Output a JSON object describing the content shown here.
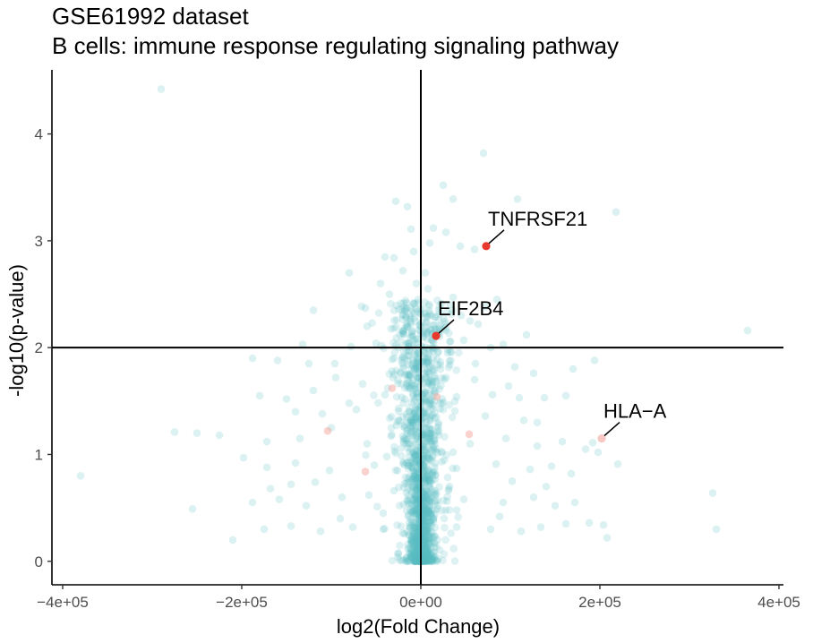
{
  "chart_data": {
    "type": "scatter",
    "title": "GSE61992 dataset",
    "subtitle": "B cells: immune response regulating signaling pathway",
    "xlabel": "log2(Fold Change)",
    "ylabel": "-log10(p-value)",
    "xlim": [
      -412000,
      405000
    ],
    "ylim": [
      -0.22,
      4.6
    ],
    "x_ticks": [
      -400000,
      -200000,
      0,
      200000,
      400000
    ],
    "x_tick_labels": [
      "−4e+05",
      "−2e+05",
      "0e+00",
      "2e+05",
      "4e+05"
    ],
    "y_ticks": [
      0,
      1,
      2,
      3,
      4
    ],
    "y_tick_labels": [
      "0",
      "1",
      "2",
      "3",
      "4"
    ],
    "vline_x": 0,
    "hline_y": 2,
    "grid": false,
    "colors": {
      "background_points": "#5bc0c4",
      "highlight_points": "#e8392f",
      "faint_highlight_points": "#f4a39c",
      "axis": "#000000",
      "tick_text": "#4d4d4d"
    },
    "background_points": [
      [
        -290000,
        4.42
      ],
      [
        70000,
        3.82
      ],
      [
        25000,
        3.52
      ],
      [
        36000,
        3.39
      ],
      [
        108000,
        3.39
      ],
      [
        218000,
        3.27
      ],
      [
        -28000,
        3.37
      ],
      [
        -15000,
        3.32
      ],
      [
        14000,
        3.12
      ],
      [
        28000,
        3.08
      ],
      [
        -11000,
        3.11
      ],
      [
        -30000,
        2.84
      ],
      [
        10000,
        2.98
      ],
      [
        44000,
        2.95
      ],
      [
        60000,
        2.92
      ],
      [
        -20000,
        2.72
      ],
      [
        -40000,
        2.85
      ],
      [
        -80000,
        2.7
      ],
      [
        -5000,
        2.6
      ],
      [
        8000,
        2.55
      ],
      [
        36000,
        2.47
      ],
      [
        72000,
        2.38
      ],
      [
        85000,
        2.45
      ],
      [
        -120000,
        2.35
      ],
      [
        -62000,
        2.37
      ],
      [
        -35000,
        2.5
      ],
      [
        -16000,
        2.42
      ],
      [
        20000,
        2.35
      ],
      [
        45000,
        2.3
      ],
      [
        64000,
        2.22
      ],
      [
        118000,
        2.12
      ],
      [
        -132000,
        2.03
      ],
      [
        -78000,
        2.01
      ],
      [
        -50000,
        2.04
      ],
      [
        -25000,
        2.0
      ],
      [
        14000,
        2.05
      ],
      [
        48000,
        2.07
      ],
      [
        78000,
        2.0
      ],
      [
        92000,
        2.03
      ],
      [
        365000,
        2.16
      ],
      [
        -188000,
        1.9
      ],
      [
        -160000,
        1.88
      ],
      [
        -96000,
        1.85
      ],
      [
        -30000,
        1.9
      ],
      [
        30000,
        1.95
      ],
      [
        61000,
        1.85
      ],
      [
        105000,
        1.82
      ],
      [
        170000,
        1.8
      ],
      [
        194000,
        1.88
      ],
      [
        -180000,
        1.55
      ],
      [
        -150000,
        1.52
      ],
      [
        -120000,
        1.6
      ],
      [
        -80000,
        1.48
      ],
      [
        -40000,
        1.56
      ],
      [
        40000,
        1.54
      ],
      [
        80000,
        1.56
      ],
      [
        110000,
        1.53
      ],
      [
        138000,
        1.53
      ],
      [
        162000,
        1.55
      ],
      [
        -275000,
        1.21
      ],
      [
        -250000,
        1.2
      ],
      [
        -225000,
        1.18
      ],
      [
        -172000,
        1.12
      ],
      [
        -135000,
        1.15
      ],
      [
        -100000,
        1.25
      ],
      [
        -60000,
        1.1
      ],
      [
        -20000,
        1.17
      ],
      [
        20000,
        1.22
      ],
      [
        55000,
        1.1
      ],
      [
        95000,
        1.15
      ],
      [
        130000,
        1.08
      ],
      [
        158000,
        1.12
      ],
      [
        184000,
        1.05
      ],
      [
        192000,
        1.11
      ],
      [
        198000,
        1.02
      ],
      [
        -198000,
        0.97
      ],
      [
        -172000,
        0.88
      ],
      [
        -140000,
        0.92
      ],
      [
        -102000,
        0.85
      ],
      [
        -52000,
        0.9
      ],
      [
        40000,
        0.87
      ],
      [
        84000,
        0.91
      ],
      [
        122000,
        0.86
      ],
      [
        146000,
        0.89
      ],
      [
        168000,
        0.82
      ],
      [
        220000,
        0.91
      ],
      [
        -380000,
        0.8
      ],
      [
        -188000,
        0.55
      ],
      [
        -158000,
        0.58
      ],
      [
        -128000,
        0.52
      ],
      [
        -88000,
        0.6
      ],
      [
        -58000,
        0.62
      ],
      [
        48000,
        0.58
      ],
      [
        92000,
        0.55
      ],
      [
        126000,
        0.6
      ],
      [
        150000,
        0.52
      ],
      [
        172000,
        0.55
      ],
      [
        326000,
        0.64
      ],
      [
        -255000,
        0.49
      ],
      [
        -175000,
        0.3
      ],
      [
        -145000,
        0.33
      ],
      [
        -112000,
        0.28
      ],
      [
        -76000,
        0.32
      ],
      [
        -42000,
        0.3
      ],
      [
        40000,
        0.32
      ],
      [
        78000,
        0.3
      ],
      [
        112000,
        0.28
      ],
      [
        134000,
        0.32
      ],
      [
        162000,
        0.35
      ],
      [
        188000,
        0.36
      ],
      [
        204000,
        0.34
      ],
      [
        330000,
        0.3
      ],
      [
        -95000,
        1.72
      ],
      [
        -65000,
        1.66
      ],
      [
        60000,
        1.7
      ],
      [
        98000,
        1.64
      ],
      [
        -110000,
        1.38
      ],
      [
        -72000,
        1.42
      ],
      [
        72000,
        1.36
      ],
      [
        115000,
        1.32
      ],
      [
        -145000,
        0.72
      ],
      [
        -118000,
        0.74
      ],
      [
        102000,
        0.75
      ],
      [
        140000,
        0.7
      ],
      [
        -168000,
        0.68
      ],
      [
        -140000,
        1.4
      ],
      [
        130000,
        1.3
      ],
      [
        -60000,
        2.2
      ],
      [
        55000,
        2.25
      ],
      [
        -90000,
        0.4
      ],
      [
        88000,
        0.42
      ],
      [
        -210000,
        0.2
      ],
      [
        208000,
        0.22
      ],
      [
        -125000,
        1.85
      ],
      [
        126000,
        1.76
      ],
      [
        -45000,
        2.6
      ],
      [
        -8000,
        2.9
      ],
      [
        5000,
        2.7
      ],
      [
        -3000,
        2.45
      ],
      [
        12000,
        2.3
      ],
      [
        -20000,
        2.15
      ],
      [
        18000,
        2.12
      ],
      [
        -32000,
        1.78
      ],
      [
        28000,
        1.72
      ],
      [
        -25000,
        1.32
      ],
      [
        25000,
        1.42
      ],
      [
        -38000,
        0.98
      ],
      [
        36000,
        1.02
      ],
      [
        -30000,
        0.66
      ],
      [
        32000,
        0.7
      ],
      [
        -42000,
        0.45
      ],
      [
        40000,
        0.48
      ]
    ],
    "highlighted_genes": [
      {
        "name": "TNFRSF21",
        "x": 73000,
        "y": 2.95
      },
      {
        "name": "EIF2B4",
        "x": 17000,
        "y": 2.11
      },
      {
        "name": "HLA−A",
        "x": 202000,
        "y": 1.15
      }
    ],
    "faint_highlight_points": [
      [
        -32000,
        1.62
      ],
      [
        18000,
        1.54
      ],
      [
        54000,
        1.19
      ],
      [
        -104000,
        1.22
      ],
      [
        -62000,
        0.84
      ]
    ]
  }
}
